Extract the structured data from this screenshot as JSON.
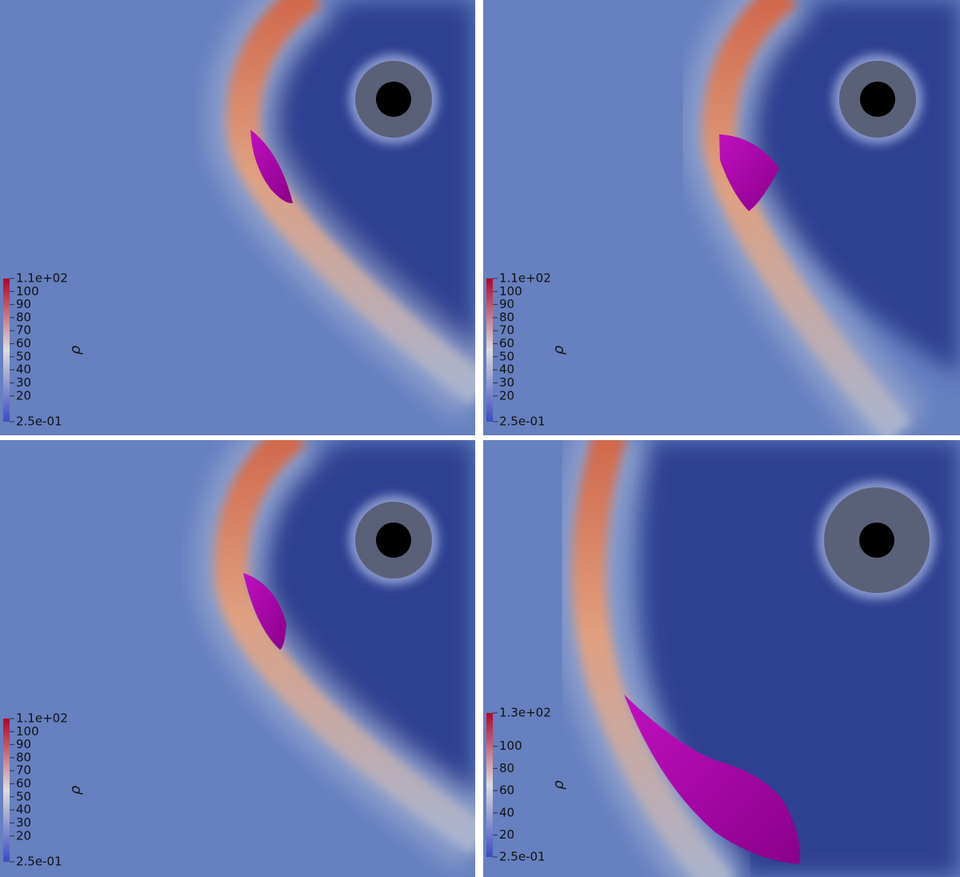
{
  "panels": [
    {
      "colorbar": {
        "label": "ρ",
        "lim": [
          0.25,
          110
        ],
        "ticks": [
          {
            "value": 0.25,
            "label": "2.5e-01"
          },
          20,
          30,
          40,
          50,
          60,
          70,
          80,
          90,
          100,
          {
            "value": 110,
            "label": "1.1e+02"
          }
        ]
      }
    },
    {
      "colorbar": {
        "label": "ρ",
        "lim": [
          0.25,
          110
        ],
        "ticks": [
          {
            "value": 0.25,
            "label": "2.5e-01"
          },
          20,
          30,
          40,
          50,
          60,
          70,
          80,
          90,
          100,
          {
            "value": 110,
            "label": "1.1e+02"
          }
        ]
      }
    },
    {
      "colorbar": {
        "label": "ρ",
        "lim": [
          0.25,
          110
        ],
        "ticks": [
          {
            "value": 0.25,
            "label": "2.5e-01"
          },
          20,
          30,
          40,
          50,
          60,
          70,
          80,
          90,
          100,
          {
            "value": 110,
            "label": "1.1e+02"
          }
        ]
      }
    },
    {
      "colorbar": {
        "label": "ρ",
        "lim": [
          0.25,
          130
        ],
        "ticks": [
          {
            "value": 0.25,
            "label": "2.5e-01"
          },
          20,
          40,
          60,
          80,
          100,
          {
            "value": 130,
            "label": "1.3e+02"
          }
        ]
      }
    }
  ]
}
